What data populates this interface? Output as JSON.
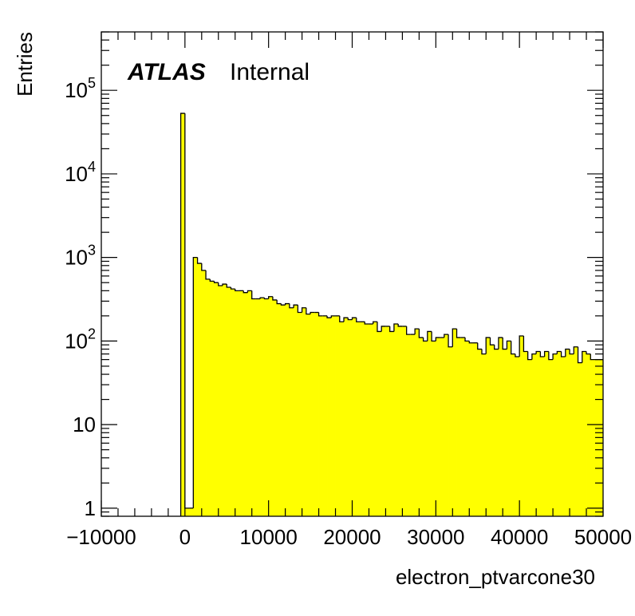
{
  "chart_data": {
    "type": "bar",
    "title": "",
    "xlabel": "electron_ptvarcone30",
    "ylabel": "Entries",
    "label": {
      "experiment": "ATLAS",
      "status": "Internal"
    },
    "x_scale": "linear",
    "y_scale": "log",
    "xlim": [
      -10000,
      50000
    ],
    "ylim": [
      0.8,
      500000
    ],
    "x_ticks": [
      -10000,
      0,
      10000,
      20000,
      30000,
      40000,
      50000
    ],
    "x_tick_labels": [
      "−10000",
      "0",
      "10000",
      "20000",
      "30000",
      "40000",
      "50000"
    ],
    "y_ticks": [
      1,
      10,
      100,
      1000,
      10000,
      100000
    ],
    "y_tick_labels": [
      {
        "base": "1",
        "exp": ""
      },
      {
        "base": "10",
        "exp": ""
      },
      {
        "base": "10",
        "exp": "2"
      },
      {
        "base": "10",
        "exp": "3"
      },
      {
        "base": "10",
        "exp": "4"
      },
      {
        "base": "10",
        "exp": "5"
      }
    ],
    "bin_width": 500,
    "grid": false,
    "fill_color": "#ffff00",
    "line_color": "#000000",
    "series": [
      {
        "x_low": [
          -500,
          0,
          500,
          1000,
          1500,
          2000,
          2500,
          3000,
          3500,
          4000,
          4500,
          5000,
          5500,
          6000,
          6500,
          7000,
          7500,
          8000,
          8500,
          9000,
          9500,
          10000,
          10500,
          11000,
          11500,
          12000,
          12500,
          13000,
          13500,
          14000,
          14500,
          15000,
          15500,
          16000,
          16500,
          17000,
          17500,
          18000,
          18500,
          19000,
          19500,
          20000,
          20500,
          21000,
          21500,
          22000,
          22500,
          23000,
          23500,
          24000,
          24500,
          25000,
          25500,
          26000,
          26500,
          27000,
          27500,
          28000,
          28500,
          29000,
          29500,
          30000,
          30500,
          31000,
          31500,
          32000,
          32500,
          33000,
          33500,
          34000,
          34500,
          35000,
          35500,
          36000,
          36500,
          37000,
          37500,
          38000,
          38500,
          39000,
          39500,
          40000,
          40500,
          41000,
          41500,
          42000,
          42500,
          43000,
          43500,
          44000,
          44500,
          45000,
          45500,
          46000,
          46500,
          47000,
          47500,
          48000,
          48500,
          49000,
          49500
        ],
        "values": [
          53000,
          1,
          1,
          1000,
          850,
          700,
          550,
          520,
          500,
          460,
          480,
          440,
          420,
          400,
          400,
          380,
          400,
          320,
          320,
          330,
          320,
          340,
          310,
          280,
          270,
          280,
          250,
          270,
          220,
          250,
          210,
          220,
          220,
          200,
          200,
          190,
          200,
          200,
          170,
          190,
          180,
          190,
          170,
          170,
          160,
          160,
          170,
          130,
          150,
          150,
          130,
          160,
          150,
          150,
          120,
          120,
          140,
          110,
          100,
          130,
          100,
          110,
          110,
          120,
          85,
          140,
          110,
          110,
          100,
          95,
          95,
          80,
          70,
          110,
          90,
          80,
          110,
          80,
          100,
          70,
          65,
          115,
          75,
          60,
          70,
          75,
          65,
          75,
          60,
          70,
          75,
          65,
          80,
          70,
          85,
          55,
          75,
          70,
          60,
          60,
          60
        ]
      }
    ]
  }
}
